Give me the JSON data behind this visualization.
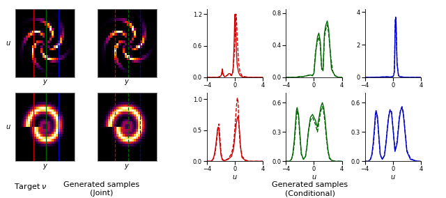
{
  "fig_width": 6.4,
  "fig_height": 2.84,
  "dpi": 100,
  "background": "#ffffff",
  "xlim": [
    -4,
    4
  ],
  "red_top_solid": {
    "x": [
      -4.0,
      -3.5,
      -3.0,
      -2.5,
      -2.2,
      -2.0,
      -1.9,
      -1.85,
      -1.8,
      -1.75,
      -1.7,
      -1.6,
      -1.5,
      -1.3,
      -1.1,
      -0.9,
      -0.7,
      -0.5,
      -0.35,
      -0.25,
      -0.15,
      -0.1,
      -0.05,
      0.0,
      0.05,
      0.1,
      0.15,
      0.2,
      0.3,
      0.5,
      0.7,
      1.0,
      1.5,
      2.0,
      3.0,
      4.0
    ],
    "y": [
      0.0,
      0.0,
      0.0,
      0.0,
      0.01,
      0.03,
      0.06,
      0.1,
      0.14,
      0.1,
      0.06,
      0.03,
      0.01,
      0.02,
      0.04,
      0.07,
      0.07,
      0.04,
      0.08,
      0.2,
      0.55,
      0.8,
      1.1,
      1.2,
      1.1,
      0.9,
      0.7,
      0.5,
      0.25,
      0.1,
      0.04,
      0.01,
      0.0,
      0.0,
      0.0,
      0.0
    ],
    "ylim": [
      0,
      1.3
    ],
    "yticks": [
      0.0,
      0.6,
      1.2
    ]
  },
  "red_top_dashed": {
    "x": [
      -4.0,
      -3.5,
      -3.0,
      -2.5,
      -2.2,
      -2.0,
      -1.9,
      -1.85,
      -1.8,
      -1.75,
      -1.7,
      -1.5,
      -1.3,
      -1.1,
      -0.9,
      -0.7,
      -0.5,
      -0.3,
      -0.1,
      0.0,
      0.05,
      0.1,
      0.15,
      0.2,
      0.25,
      0.3,
      0.5,
      0.7,
      1.0,
      1.5,
      2.0,
      4.0
    ],
    "y": [
      0.0,
      0.0,
      0.0,
      0.0,
      0.01,
      0.03,
      0.07,
      0.12,
      0.16,
      0.12,
      0.06,
      0.01,
      0.02,
      0.04,
      0.06,
      0.05,
      0.03,
      0.1,
      0.45,
      0.8,
      1.0,
      1.15,
      1.2,
      1.15,
      1.0,
      0.8,
      0.3,
      0.1,
      0.03,
      0.01,
      0.0,
      0.0
    ]
  },
  "green_top_solid": {
    "x": [
      -4.0,
      -3.5,
      -3.0,
      -2.5,
      -2.0,
      -1.5,
      -1.0,
      -0.5,
      -0.2,
      0.0,
      0.3,
      0.5,
      0.7,
      0.9,
      1.1,
      1.3,
      1.5,
      1.7,
      1.9,
      2.1,
      2.3,
      2.5,
      3.0,
      3.5,
      4.0
    ],
    "y": [
      0.0,
      0.0,
      0.0,
      0.0,
      0.01,
      0.01,
      0.02,
      0.03,
      0.02,
      0.05,
      0.35,
      0.5,
      0.55,
      0.45,
      0.12,
      0.08,
      0.55,
      0.65,
      0.7,
      0.6,
      0.35,
      0.1,
      0.02,
      0.0,
      0.0
    ],
    "ylim": [
      0,
      0.85
    ],
    "yticks": [
      0.0,
      0.4,
      0.8
    ]
  },
  "green_top_dashed": {
    "x": [
      -4.0,
      -3.5,
      -3.0,
      -2.5,
      -2.0,
      -1.5,
      -1.0,
      -0.5,
      -0.2,
      0.0,
      0.2,
      0.5,
      0.7,
      0.9,
      1.1,
      1.3,
      1.5,
      1.7,
      1.9,
      2.1,
      2.4,
      2.7,
      3.0,
      3.5,
      4.0
    ],
    "y": [
      0.0,
      0.0,
      0.0,
      0.0,
      0.01,
      0.01,
      0.02,
      0.03,
      0.02,
      0.06,
      0.3,
      0.45,
      0.5,
      0.4,
      0.1,
      0.1,
      0.5,
      0.6,
      0.65,
      0.55,
      0.25,
      0.07,
      0.02,
      0.0,
      0.0
    ]
  },
  "blue_top_solid": {
    "x": [
      -4.0,
      -3.5,
      -3.0,
      -2.5,
      -2.0,
      -1.5,
      -1.0,
      -0.5,
      -0.2,
      0.0,
      0.1,
      0.2,
      0.25,
      0.3,
      0.35,
      0.4,
      0.45,
      0.5,
      0.6,
      0.8,
      1.0,
      1.5,
      2.0,
      3.0,
      4.0
    ],
    "y": [
      0.0,
      0.0,
      0.0,
      0.01,
      0.01,
      0.02,
      0.03,
      0.02,
      0.02,
      0.05,
      0.1,
      0.3,
      1.0,
      2.5,
      3.5,
      3.65,
      3.4,
      2.5,
      0.8,
      0.1,
      0.04,
      0.01,
      0.0,
      0.0,
      0.0
    ],
    "ylim": [
      0,
      4.2
    ],
    "yticks": [
      0,
      2,
      4
    ]
  },
  "blue_top_dashed": {
    "x": [
      -4.0,
      -3.5,
      -3.0,
      -2.5,
      -2.0,
      -1.5,
      -1.0,
      -0.5,
      -0.2,
      0.0,
      0.1,
      0.2,
      0.25,
      0.3,
      0.35,
      0.4,
      0.45,
      0.5,
      0.6,
      0.8,
      1.0,
      1.5,
      2.0,
      3.0,
      4.0
    ],
    "y": [
      0.0,
      0.0,
      0.0,
      0.01,
      0.01,
      0.02,
      0.03,
      0.02,
      0.02,
      0.05,
      0.1,
      0.35,
      1.1,
      2.6,
      3.55,
      3.7,
      3.45,
      2.55,
      0.85,
      0.12,
      0.04,
      0.01,
      0.0,
      0.0,
      0.0
    ]
  },
  "red_bot_solid": {
    "x": [
      -4.0,
      -3.5,
      -3.2,
      -3.0,
      -2.8,
      -2.6,
      -2.5,
      -2.4,
      -2.3,
      -2.2,
      -2.0,
      -1.8,
      -1.5,
      -1.0,
      -0.5,
      -0.2,
      0.0,
      0.15,
      0.3,
      0.4,
      0.5,
      0.6,
      0.7,
      0.8,
      1.0,
      1.5,
      2.0,
      3.0,
      4.0
    ],
    "y": [
      0.0,
      0.0,
      0.02,
      0.08,
      0.2,
      0.4,
      0.52,
      0.55,
      0.52,
      0.35,
      0.1,
      0.02,
      0.01,
      0.03,
      0.08,
      0.2,
      0.42,
      0.58,
      0.68,
      0.72,
      0.68,
      0.55,
      0.4,
      0.22,
      0.06,
      0.01,
      0.0,
      0.0,
      0.0
    ],
    "ylim": [
      0,
      1.1
    ],
    "yticks": [
      0.0,
      0.5,
      1.0
    ]
  },
  "red_bot_dashed": {
    "x": [
      -4.0,
      -3.5,
      -3.2,
      -3.0,
      -2.8,
      -2.6,
      -2.5,
      -2.4,
      -2.3,
      -2.2,
      -2.0,
      -1.8,
      -1.5,
      -1.0,
      -0.5,
      -0.2,
      0.0,
      0.1,
      0.2,
      0.3,
      0.35,
      0.4,
      0.45,
      0.5,
      0.6,
      0.7,
      1.0,
      1.5,
      2.0,
      3.0,
      4.0
    ],
    "y": [
      0.0,
      0.0,
      0.02,
      0.06,
      0.16,
      0.34,
      0.46,
      0.55,
      0.6,
      0.46,
      0.14,
      0.03,
      0.01,
      0.04,
      0.12,
      0.28,
      0.55,
      0.72,
      0.88,
      1.0,
      1.02,
      1.0,
      0.92,
      0.75,
      0.5,
      0.3,
      0.08,
      0.02,
      0.0,
      0.0,
      0.0
    ]
  },
  "green_bot_solid": {
    "x": [
      -4.0,
      -3.5,
      -3.2,
      -3.0,
      -2.8,
      -2.6,
      -2.5,
      -2.4,
      -2.2,
      -2.0,
      -1.8,
      -1.5,
      -1.2,
      -1.0,
      -0.8,
      -0.5,
      -0.2,
      0.2,
      0.5,
      0.8,
      1.0,
      1.2,
      1.4,
      1.6,
      1.8,
      2.0,
      2.2,
      2.5,
      3.0,
      3.5,
      4.0
    ],
    "y": [
      0.0,
      0.0,
      0.02,
      0.08,
      0.22,
      0.42,
      0.52,
      0.55,
      0.48,
      0.28,
      0.08,
      0.02,
      0.05,
      0.15,
      0.3,
      0.45,
      0.48,
      0.42,
      0.35,
      0.48,
      0.56,
      0.6,
      0.55,
      0.42,
      0.25,
      0.12,
      0.04,
      0.01,
      0.0,
      0.0,
      0.0
    ],
    "ylim": [
      0,
      0.7
    ],
    "yticks": [
      0.0,
      0.3,
      0.6
    ]
  },
  "green_bot_dashed": {
    "x": [
      -4.0,
      -3.5,
      -3.2,
      -3.0,
      -2.8,
      -2.6,
      -2.5,
      -2.4,
      -2.2,
      -2.0,
      -1.8,
      -1.5,
      -1.2,
      -1.0,
      -0.8,
      -0.5,
      -0.2,
      0.2,
      0.5,
      0.8,
      1.0,
      1.2,
      1.4,
      1.6,
      1.8,
      2.0,
      2.2,
      2.5,
      3.0,
      3.5,
      4.0
    ],
    "y": [
      0.0,
      0.0,
      0.02,
      0.07,
      0.18,
      0.36,
      0.47,
      0.52,
      0.45,
      0.25,
      0.07,
      0.02,
      0.05,
      0.16,
      0.3,
      0.42,
      0.45,
      0.38,
      0.3,
      0.44,
      0.52,
      0.56,
      0.5,
      0.38,
      0.22,
      0.1,
      0.03,
      0.01,
      0.0,
      0.0,
      0.0
    ]
  },
  "blue_bot_solid": {
    "x": [
      -4.0,
      -3.5,
      -3.2,
      -3.0,
      -2.8,
      -2.6,
      -2.5,
      -2.4,
      -2.2,
      -2.0,
      -1.8,
      -1.5,
      -1.2,
      -1.0,
      -0.8,
      -0.6,
      -0.4,
      -0.2,
      0.0,
      0.3,
      0.6,
      0.9,
      1.1,
      1.3,
      1.5,
      1.8,
      2.0,
      2.5,
      3.0,
      3.5,
      4.0
    ],
    "y": [
      0.0,
      0.0,
      0.02,
      0.07,
      0.19,
      0.37,
      0.48,
      0.52,
      0.46,
      0.26,
      0.07,
      0.02,
      0.06,
      0.17,
      0.32,
      0.46,
      0.52,
      0.5,
      0.35,
      0.1,
      0.18,
      0.42,
      0.52,
      0.55,
      0.48,
      0.25,
      0.1,
      0.02,
      0.01,
      0.0,
      0.0
    ],
    "ylim": [
      0,
      0.7
    ],
    "yticks": [
      0.0,
      0.3,
      0.6
    ]
  },
  "blue_bot_dashed": {
    "x": [
      -4.0,
      -3.5,
      -3.2,
      -3.0,
      -2.8,
      -2.6,
      -2.5,
      -2.4,
      -2.2,
      -2.0,
      -1.8,
      -1.5,
      -1.2,
      -1.0,
      -0.8,
      -0.6,
      -0.4,
      -0.2,
      0.0,
      0.3,
      0.6,
      0.9,
      1.1,
      1.3,
      1.5,
      1.8,
      2.0,
      2.5,
      3.0,
      3.5,
      4.0
    ],
    "y": [
      0.0,
      0.0,
      0.02,
      0.06,
      0.16,
      0.33,
      0.44,
      0.5,
      0.44,
      0.24,
      0.06,
      0.02,
      0.06,
      0.18,
      0.33,
      0.46,
      0.53,
      0.51,
      0.36,
      0.11,
      0.2,
      0.44,
      0.53,
      0.56,
      0.5,
      0.26,
      0.11,
      0.03,
      0.01,
      0.0,
      0.0
    ]
  },
  "colors": {
    "red": "#cc0000",
    "green": "#006600",
    "blue": "#0000cc"
  },
  "line_width": 1.0
}
